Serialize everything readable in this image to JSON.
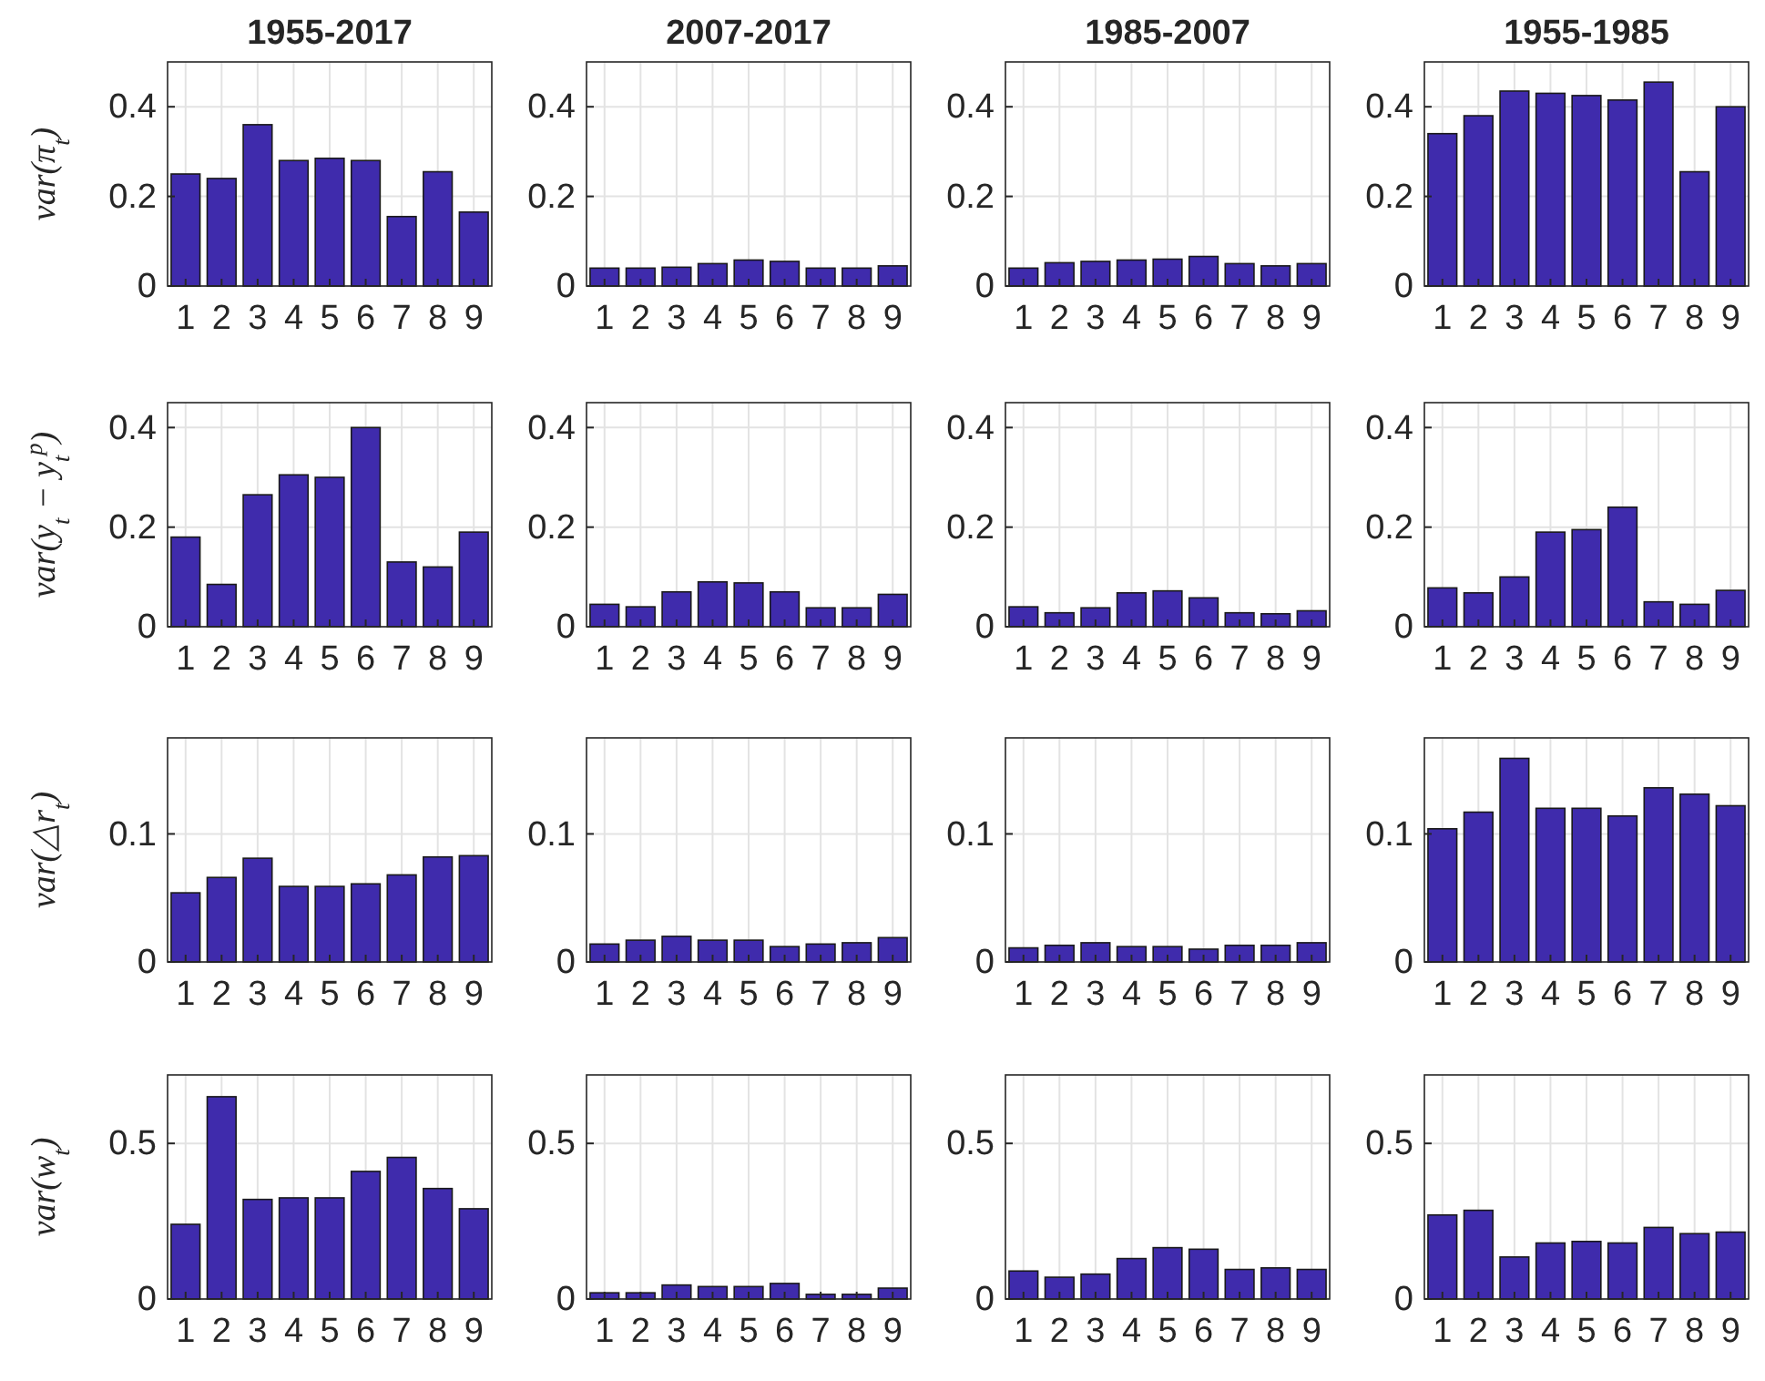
{
  "chart_data": [
    {
      "type": "bar",
      "title": "1955-2017",
      "ylabel": "var(π$_{t}$)",
      "categories": [
        "1",
        "2",
        "3",
        "4",
        "5",
        "6",
        "7",
        "8",
        "9"
      ],
      "values": [
        0.25,
        0.24,
        0.36,
        0.28,
        0.285,
        0.28,
        0.155,
        0.255,
        0.165
      ],
      "color": "#3f2bac",
      "ylim": [
        0,
        0.5
      ],
      "yticks": [
        0,
        0.2,
        0.4
      ],
      "grid": true
    },
    {
      "type": "bar",
      "title": "2007-2017",
      "categories": [
        "1",
        "2",
        "3",
        "4",
        "5",
        "6",
        "7",
        "8",
        "9"
      ],
      "values": [
        0.04,
        0.04,
        0.042,
        0.05,
        0.058,
        0.055,
        0.04,
        0.04,
        0.045
      ],
      "color": "#3f2bac",
      "ylim": [
        0,
        0.5
      ],
      "yticks": [
        0,
        0.2,
        0.4
      ],
      "grid": true
    },
    {
      "type": "bar",
      "title": "1985-2007",
      "categories": [
        "1",
        "2",
        "3",
        "4",
        "5",
        "6",
        "7",
        "8",
        "9"
      ],
      "values": [
        0.04,
        0.052,
        0.055,
        0.058,
        0.06,
        0.066,
        0.05,
        0.045,
        0.05
      ],
      "color": "#3f2bac",
      "ylim": [
        0,
        0.5
      ],
      "yticks": [
        0,
        0.2,
        0.4
      ],
      "grid": true
    },
    {
      "type": "bar",
      "title": "1955-1985",
      "categories": [
        "1",
        "2",
        "3",
        "4",
        "5",
        "6",
        "7",
        "8",
        "9"
      ],
      "values": [
        0.34,
        0.38,
        0.435,
        0.43,
        0.425,
        0.415,
        0.455,
        0.255,
        0.4
      ],
      "color": "#3f2bac",
      "ylim": [
        0,
        0.5
      ],
      "yticks": [
        0,
        0.2,
        0.4
      ],
      "grid": true
    },
    {
      "type": "bar",
      "ylabel": "var(y$_{t}$ − y$_{t}$$^{p}$)",
      "categories": [
        "1",
        "2",
        "3",
        "4",
        "5",
        "6",
        "7",
        "8",
        "9"
      ],
      "values": [
        0.18,
        0.085,
        0.265,
        0.305,
        0.3,
        0.4,
        0.13,
        0.12,
        0.19
      ],
      "color": "#3f2bac",
      "ylim": [
        0,
        0.45
      ],
      "yticks": [
        0,
        0.2,
        0.4
      ],
      "grid": true
    },
    {
      "type": "bar",
      "categories": [
        "1",
        "2",
        "3",
        "4",
        "5",
        "6",
        "7",
        "8",
        "9"
      ],
      "values": [
        0.045,
        0.04,
        0.07,
        0.09,
        0.088,
        0.07,
        0.038,
        0.038,
        0.065
      ],
      "color": "#3f2bac",
      "ylim": [
        0,
        0.45
      ],
      "yticks": [
        0,
        0.2,
        0.4
      ],
      "grid": true
    },
    {
      "type": "bar",
      "categories": [
        "1",
        "2",
        "3",
        "4",
        "5",
        "6",
        "7",
        "8",
        "9"
      ],
      "values": [
        0.04,
        0.028,
        0.038,
        0.068,
        0.072,
        0.058,
        0.028,
        0.026,
        0.032
      ],
      "color": "#3f2bac",
      "ylim": [
        0,
        0.45
      ],
      "yticks": [
        0,
        0.2,
        0.4
      ],
      "grid": true
    },
    {
      "type": "bar",
      "categories": [
        "1",
        "2",
        "3",
        "4",
        "5",
        "6",
        "7",
        "8",
        "9"
      ],
      "values": [
        0.078,
        0.068,
        0.1,
        0.19,
        0.195,
        0.24,
        0.05,
        0.045,
        0.073
      ],
      "color": "#3f2bac",
      "ylim": [
        0,
        0.45
      ],
      "yticks": [
        0,
        0.2,
        0.4
      ],
      "grid": true
    },
    {
      "type": "bar",
      "ylabel": "var(△r$_{t}$)",
      "categories": [
        "1",
        "2",
        "3",
        "4",
        "5",
        "6",
        "7",
        "8",
        "9"
      ],
      "values": [
        0.054,
        0.066,
        0.081,
        0.059,
        0.059,
        0.061,
        0.068,
        0.082,
        0.083
      ],
      "color": "#3f2bac",
      "ylim": [
        0,
        0.175
      ],
      "yticks": [
        0,
        0.1
      ],
      "grid": true
    },
    {
      "type": "bar",
      "categories": [
        "1",
        "2",
        "3",
        "4",
        "5",
        "6",
        "7",
        "8",
        "9"
      ],
      "values": [
        0.014,
        0.017,
        0.02,
        0.017,
        0.017,
        0.012,
        0.014,
        0.015,
        0.019
      ],
      "color": "#3f2bac",
      "ylim": [
        0,
        0.175
      ],
      "yticks": [
        0,
        0.1
      ],
      "grid": true
    },
    {
      "type": "bar",
      "categories": [
        "1",
        "2",
        "3",
        "4",
        "5",
        "6",
        "7",
        "8",
        "9"
      ],
      "values": [
        0.011,
        0.013,
        0.015,
        0.012,
        0.012,
        0.01,
        0.013,
        0.013,
        0.015
      ],
      "color": "#3f2bac",
      "ylim": [
        0,
        0.175
      ],
      "yticks": [
        0,
        0.1
      ],
      "grid": true
    },
    {
      "type": "bar",
      "categories": [
        "1",
        "2",
        "3",
        "4",
        "5",
        "6",
        "7",
        "8",
        "9"
      ],
      "values": [
        0.104,
        0.117,
        0.159,
        0.12,
        0.12,
        0.114,
        0.136,
        0.131,
        0.122
      ],
      "color": "#3f2bac",
      "ylim": [
        0,
        0.175
      ],
      "yticks": [
        0,
        0.1
      ],
      "grid": true
    },
    {
      "type": "bar",
      "ylabel": "var(w$_{t}$)",
      "categories": [
        "1",
        "2",
        "3",
        "4",
        "5",
        "6",
        "7",
        "8",
        "9"
      ],
      "values": [
        0.24,
        0.65,
        0.32,
        0.325,
        0.325,
        0.41,
        0.455,
        0.355,
        0.29
      ],
      "color": "#3f2bac",
      "ylim": [
        0,
        0.72
      ],
      "yticks": [
        0,
        0.5
      ],
      "grid": true
    },
    {
      "type": "bar",
      "categories": [
        "1",
        "2",
        "3",
        "4",
        "5",
        "6",
        "7",
        "8",
        "9"
      ],
      "values": [
        0.02,
        0.02,
        0.045,
        0.04,
        0.04,
        0.05,
        0.015,
        0.015,
        0.035
      ],
      "color": "#3f2bac",
      "ylim": [
        0,
        0.72
      ],
      "yticks": [
        0,
        0.5
      ],
      "grid": true
    },
    {
      "type": "bar",
      "categories": [
        "1",
        "2",
        "3",
        "4",
        "5",
        "6",
        "7",
        "8",
        "9"
      ],
      "values": [
        0.09,
        0.07,
        0.08,
        0.13,
        0.165,
        0.16,
        0.095,
        0.1,
        0.095
      ],
      "color": "#3f2bac",
      "ylim": [
        0,
        0.72
      ],
      "yticks": [
        0,
        0.5
      ],
      "grid": true
    },
    {
      "type": "bar",
      "categories": [
        "1",
        "2",
        "3",
        "4",
        "5",
        "6",
        "7",
        "8",
        "9"
      ],
      "values": [
        0.27,
        0.285,
        0.135,
        0.18,
        0.185,
        0.18,
        0.23,
        0.21,
        0.215
      ],
      "color": "#3f2bac",
      "ylim": [
        0,
        0.72
      ],
      "yticks": [
        0,
        0.5
      ],
      "grid": true
    }
  ]
}
